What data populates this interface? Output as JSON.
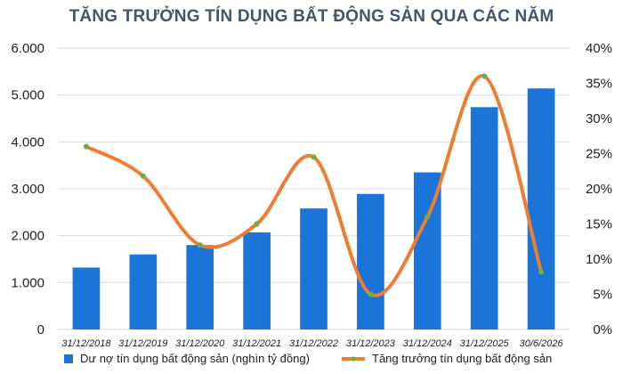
{
  "chart_data": {
    "type": "bar",
    "title": "TĂNG TRƯỞNG TÍN DỤNG BẤT ĐỘNG SẢN QUA CÁC NĂM",
    "categories": [
      "31/12/2018",
      "31/12/2019",
      "31/12/2020",
      "31/12/2021",
      "31/12/2022",
      "31/12/2023",
      "31/12/2024",
      "31/12/2025",
      "30/6/2026"
    ],
    "series": [
      {
        "name": "Dư nợ tín dụng bất động sản (nghìn tỷ đồng)",
        "type": "bar",
        "axis": "left",
        "color": "#1b74d7",
        "values": [
          1320,
          1600,
          1800,
          2070,
          2580,
          2890,
          3350,
          4740,
          5140
        ]
      },
      {
        "name": "Tăng trưởng tín dụng bất động sản",
        "type": "line",
        "axis": "right",
        "color": "#ed7d31",
        "values": [
          26,
          21.8,
          12,
          15,
          24.5,
          5,
          16,
          36,
          8.2
        ]
      }
    ],
    "y_left": {
      "min": 0,
      "max": 6000,
      "ticks": [
        "0",
        "1.000",
        "2.000",
        "3.000",
        "4.000",
        "5.000",
        "6.000"
      ]
    },
    "y_right": {
      "min": 0,
      "max": 40,
      "ticks": [
        "0%",
        "5%",
        "10%",
        "15%",
        "20%",
        "25%",
        "30%",
        "35%",
        "40%"
      ]
    },
    "grid": true,
    "legend_position": "bottom"
  }
}
